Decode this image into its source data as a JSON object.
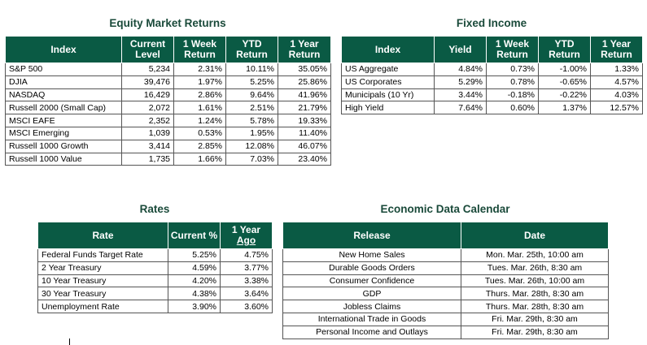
{
  "equity": {
    "title": "Equity Market Returns",
    "headers": [
      "Index",
      "Current Level",
      "1 Week Return",
      "YTD Return",
      "1 Year Return"
    ],
    "rows": [
      [
        "S&P 500",
        "5,234",
        "2.31%",
        "10.11%",
        "35.05%"
      ],
      [
        "DJIA",
        "39,476",
        "1.97%",
        "5.25%",
        "25.86%"
      ],
      [
        "NASDAQ",
        "16,429",
        "2.86%",
        "9.64%",
        "41.96%"
      ],
      [
        "Russell 2000 (Small Cap)",
        "2,072",
        "1.61%",
        "2.51%",
        "21.79%"
      ],
      [
        "MSCI EAFE",
        "2,352",
        "1.24%",
        "5.78%",
        "19.33%"
      ],
      [
        "MSCI Emerging",
        "1,039",
        "0.53%",
        "1.95%",
        "11.40%"
      ],
      [
        "Russell 1000 Growth",
        "3,414",
        "2.85%",
        "12.08%",
        "46.07%"
      ],
      [
        "Russell 1000 Value",
        "1,735",
        "1.66%",
        "7.03%",
        "23.40%"
      ]
    ]
  },
  "fixed": {
    "title": "Fixed Income",
    "headers": [
      "Index",
      "Yield",
      "1 Week Return",
      "YTD Return",
      "1 Year Return"
    ],
    "rows": [
      [
        "US Aggregate",
        "4.84%",
        "0.73%",
        "-1.00%",
        "1.33%"
      ],
      [
        "US Corporates",
        "5.29%",
        "0.78%",
        "-0.65%",
        "4.57%"
      ],
      [
        "Municipals (10 Yr)",
        "3.44%",
        "-0.18%",
        "-0.22%",
        "4.03%"
      ],
      [
        "High Yield",
        "7.64%",
        "0.60%",
        "1.37%",
        "12.57%"
      ]
    ]
  },
  "rates": {
    "title": "Rates",
    "headers": [
      "Rate",
      "Current %",
      "1 Year",
      "Ago"
    ],
    "rows": [
      [
        "Federal Funds Target Rate",
        "5.25%",
        "4.75%"
      ],
      [
        "2 Year Treasury",
        "4.59%",
        "3.77%"
      ],
      [
        "10 Year Treasury",
        "4.20%",
        "3.38%"
      ],
      [
        "30 Year Treasury",
        "4.38%",
        "3.64%"
      ],
      [
        "Unemployment Rate",
        "3.90%",
        "3.60%"
      ]
    ]
  },
  "calendar": {
    "title": "Economic Data Calendar",
    "headers": [
      "Release",
      "Date"
    ],
    "rows": [
      [
        "New Home Sales",
        "Mon. Mar. 25th, 10:00 am"
      ],
      [
        "Durable Goods Orders",
        "Tues. Mar. 26th, 8:30 am"
      ],
      [
        "Consumer Confidence",
        "Tues. Mar. 26th, 10:00 am"
      ],
      [
        "GDP",
        "Thurs. Mar. 28th, 8:30 am"
      ],
      [
        "Jobless Claims",
        "Thurs. Mar. 28th, 8:30 am"
      ],
      [
        "International Trade in Goods",
        "Fri. Mar. 29th, 8:30 am"
      ],
      [
        "Personal Income and Outlays",
        "Fri. Mar. 29th, 8:30 am"
      ]
    ]
  }
}
